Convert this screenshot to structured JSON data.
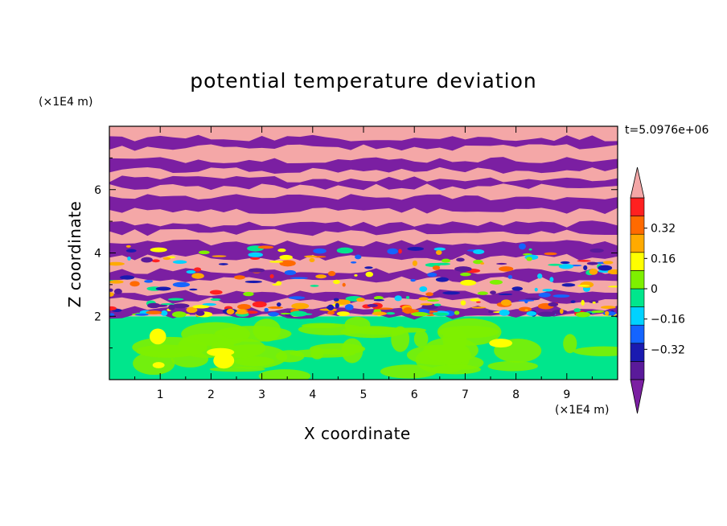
{
  "chart_data": {
    "type": "heatmap",
    "title": "potential temperature deviation",
    "xlabel": "X coordinate",
    "ylabel": "Z coordinate",
    "x_unit": "(×1E4 m)",
    "y_unit": "(×1E4 m)",
    "annotation": "t=5.0976e+06",
    "xlim": [
      0,
      10
    ],
    "ylim": [
      0,
      8
    ],
    "x_ticks": [
      "1",
      "2",
      "3",
      "4",
      "5",
      "6",
      "7",
      "8",
      "9"
    ],
    "y_ticks": [
      "2",
      "4",
      "6"
    ],
    "colorbar": {
      "range": [
        -0.48,
        0.48
      ],
      "step": 0.08,
      "tick_labels": [
        "0.32",
        "0.16",
        "0",
        "−0.16",
        "−0.32"
      ],
      "tick_values": [
        0.32,
        0.16,
        0,
        -0.16,
        -0.32
      ],
      "extend": "both",
      "over_color": "#f4a7a7",
      "under_color": "#7b1fa2",
      "colors": [
        "#5a1a9a",
        "#1a1ab0",
        "#1464ff",
        "#00d2ff",
        "#00e68c",
        "#7ef000",
        "#ffff00",
        "#ffaa00",
        "#ff6a00",
        "#ff2020"
      ]
    },
    "layers": {
      "near_surface_band_top": 2.0,
      "upper_stratified_band_base": 2.0,
      "upper_stratified_colors": [
        "#f4a7a7",
        "#7b1fa2"
      ]
    }
  }
}
